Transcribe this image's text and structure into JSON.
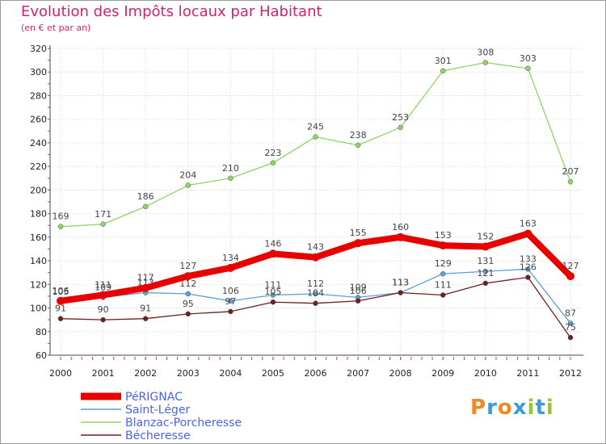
{
  "header": {
    "title": "Evolution des Impôts locaux par Habitant",
    "subtitle": "(en € et par an)"
  },
  "logo": {
    "letters": [
      "P",
      "r",
      "o",
      "x",
      "i",
      "t",
      "i"
    ],
    "colors": [
      "#f08a1e",
      "#3a9bd8",
      "#f08a1e",
      "#3a9bd8",
      "#9ac43c",
      "#3a9bd8",
      "#9ac43c"
    ]
  },
  "chart_data": {
    "type": "line",
    "title": "Evolution des Impôts locaux par Habitant",
    "subtitle": "(en € et par an)",
    "xlabel": "",
    "ylabel": "",
    "ylim": [
      60,
      320
    ],
    "yticks": [
      60,
      80,
      100,
      120,
      140,
      160,
      180,
      200,
      220,
      240,
      260,
      280,
      300,
      320
    ],
    "grid": true,
    "legend_position": "bottom-left",
    "categories": [
      "2000",
      "2001",
      "2002",
      "2003",
      "2004",
      "2005",
      "2006",
      "2007",
      "2008",
      "2009",
      "2010",
      "2011",
      "2012"
    ],
    "series": [
      {
        "name": "PéRIGNAC",
        "color": "#e80000",
        "emphasis": true,
        "values": [
          106,
          111,
          117,
          127,
          134,
          146,
          143,
          155,
          160,
          153,
          152,
          163,
          127
        ],
        "labels": [
          "106",
          "111",
          "117",
          "127",
          "134",
          "146",
          "143",
          "155",
          "160",
          "153",
          "152",
          "163",
          "127"
        ]
      },
      {
        "name": "Saint-Léger",
        "color": "#5a9fd6",
        "emphasis": false,
        "values": [
          105,
          109,
          113,
          112,
          106,
          111,
          112,
          109,
          113,
          129,
          131,
          133,
          87
        ],
        "labels": [
          "105",
          "109",
          "113",
          "112",
          "106",
          "111",
          "112",
          "109",
          "113",
          "129",
          "131",
          "133",
          "87"
        ]
      },
      {
        "name": "Blanzac-Porcheresse",
        "color": "#8fd46a",
        "emphasis": false,
        "values": [
          169,
          171,
          186,
          204,
          210,
          223,
          245,
          238,
          253,
          301,
          308,
          303,
          207
        ],
        "labels": [
          "169",
          "171",
          "186",
          "204",
          "210",
          "223",
          "245",
          "238",
          "253",
          "301",
          "308",
          "303",
          "207"
        ]
      },
      {
        "name": "Bécheresse",
        "color": "#6e1f1f",
        "emphasis": false,
        "values": [
          91,
          90,
          91,
          95,
          97,
          105,
          104,
          106,
          113,
          111,
          121,
          126,
          75
        ],
        "labels": [
          "91",
          "90",
          "91",
          "95",
          "97",
          "105",
          "104",
          "106",
          "113",
          "111",
          "121",
          "126",
          "75"
        ]
      }
    ]
  }
}
